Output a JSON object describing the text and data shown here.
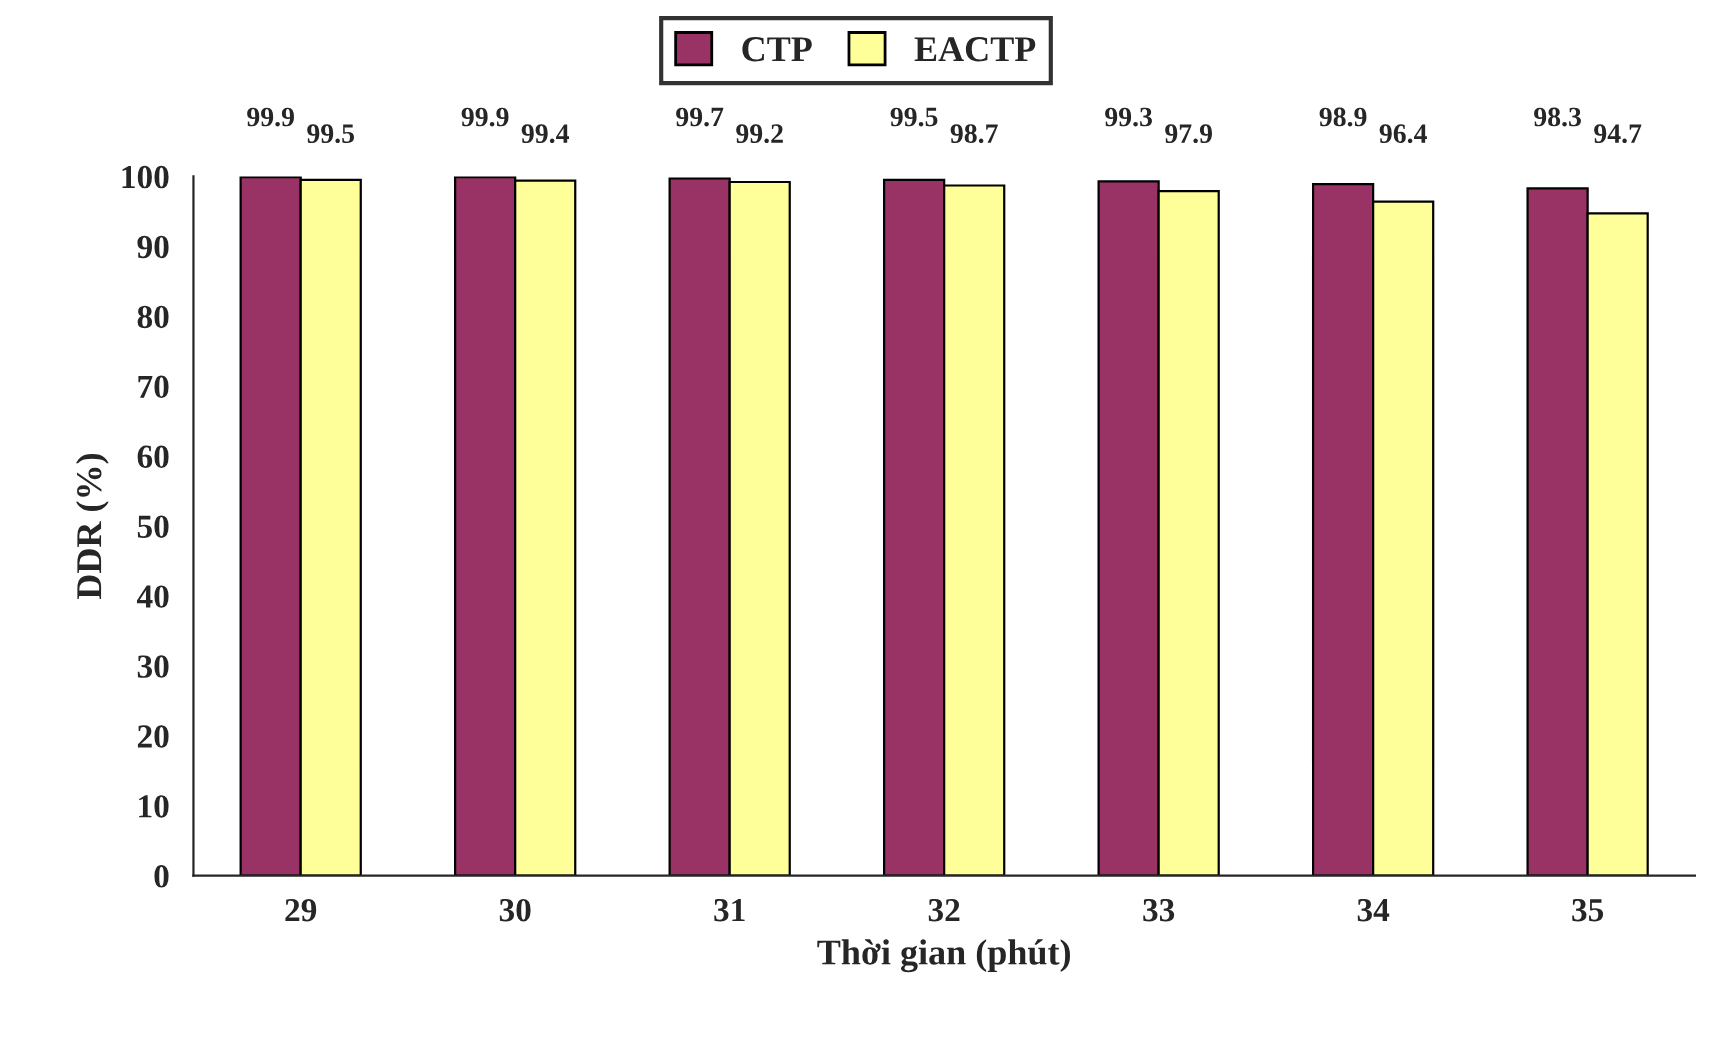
{
  "chart_data": {
    "type": "bar",
    "xlabel": "Thời gian (phút)",
    "ylabel": "DDR (%)",
    "categories": [
      "29",
      "30",
      "31",
      "32",
      "33",
      "34",
      "35"
    ],
    "series": [
      {
        "name": "CTP",
        "color": "#993366",
        "values": [
          99.9,
          99.9,
          99.7,
          99.5,
          99.3,
          98.9,
          98.3
        ]
      },
      {
        "name": "EACTP",
        "color": "#ffff99",
        "values": [
          99.5,
          99.4,
          99.2,
          98.7,
          97.9,
          96.4,
          94.7
        ]
      }
    ],
    "ylim": [
      0,
      100
    ],
    "yticks": [
      0,
      10,
      20,
      30,
      40,
      50,
      60,
      70,
      80,
      90,
      100
    ],
    "data_labels": true,
    "legend": "top",
    "grid": false
  }
}
